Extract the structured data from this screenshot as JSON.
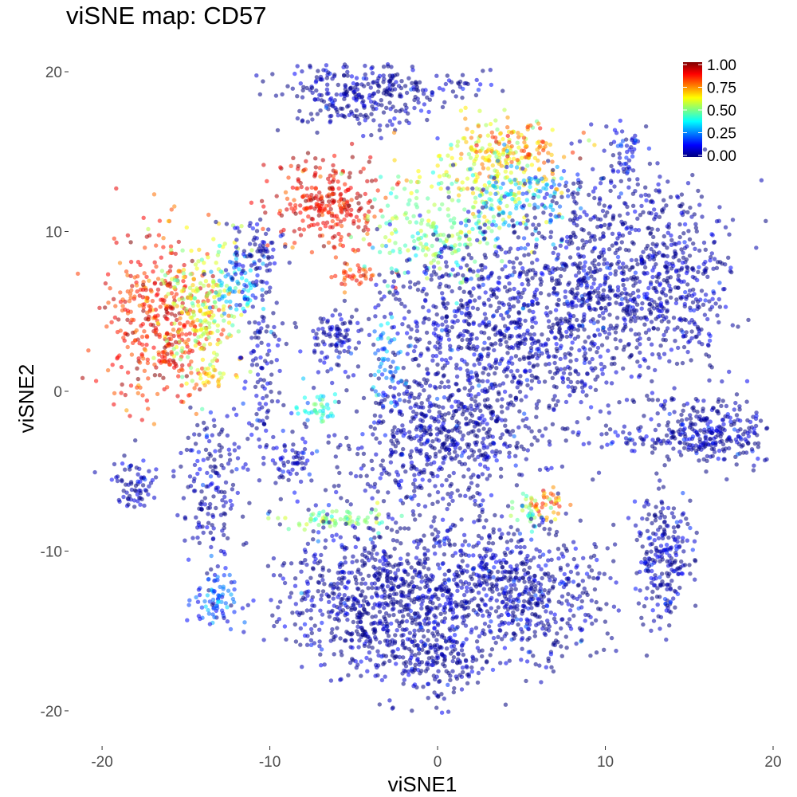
{
  "chart_data": {
    "type": "scatter",
    "title": "viSNE map: CD57",
    "xlabel": "viSNE1",
    "ylabel": "viSNE2",
    "xlim": [
      -22,
      20
    ],
    "ylim": [
      -22,
      20.5
    ],
    "x_ticks": [
      -20,
      -10,
      0,
      10,
      20
    ],
    "y_ticks": [
      -20,
      -10,
      0,
      10,
      20
    ],
    "grid": false,
    "colormap": "jet",
    "colormap_stops": [
      "#00007F",
      "#0000FF",
      "#007FFF",
      "#00FFFF",
      "#7FFF7F",
      "#FFFF00",
      "#FF7F00",
      "#FF0000",
      "#7F0000"
    ],
    "color_range": [
      0,
      1
    ],
    "legend": {
      "placement": "top-right",
      "ticks": [
        0.0,
        0.25,
        0.5,
        0.75,
        1.0
      ],
      "tick_labels": [
        "0.00",
        "0.25",
        "0.50",
        "0.75",
        "1.00"
      ]
    },
    "point_alpha": 0.55,
    "clusters": [
      {
        "cx": -4.5,
        "cy": 18.7,
        "sx": 2.6,
        "sy": 1.1,
        "value": 0.02,
        "n": 320
      },
      {
        "cx": 1.5,
        "cy": 19.2,
        "sx": 1.0,
        "sy": 0.2,
        "value": 0.05,
        "n": 15
      },
      {
        "cx": -6.5,
        "cy": 11.7,
        "sx": 1.6,
        "sy": 1.3,
        "value": 0.88,
        "n": 260
      },
      {
        "cx": -5.0,
        "cy": 7.5,
        "sx": 0.8,
        "sy": 0.6,
        "value": 0.82,
        "n": 40
      },
      {
        "cx": -16.5,
        "cy": 4.2,
        "sx": 1.7,
        "sy": 2.6,
        "value": 0.86,
        "n": 400
      },
      {
        "cx": -14.0,
        "cy": 5.2,
        "sx": 1.2,
        "sy": 2.2,
        "value": 0.58,
        "n": 200
      },
      {
        "cx": -12.0,
        "cy": 6.5,
        "sx": 0.8,
        "sy": 1.4,
        "value": 0.3,
        "n": 70
      },
      {
        "cx": -10.8,
        "cy": 8.5,
        "sx": 0.9,
        "sy": 1.2,
        "value": 0.04,
        "n": 80
      },
      {
        "cx": 3.5,
        "cy": 14.0,
        "sx": 2.0,
        "sy": 1.5,
        "value": 0.62,
        "n": 230
      },
      {
        "cx": 0.0,
        "cy": 10.0,
        "sx": 2.2,
        "sy": 1.6,
        "value": 0.5,
        "n": 200
      },
      {
        "cx": 5.5,
        "cy": 15.5,
        "sx": 1.4,
        "sy": 0.6,
        "value": 0.78,
        "n": 60
      },
      {
        "cx": 5.0,
        "cy": 12.0,
        "sx": 1.5,
        "sy": 1.3,
        "value": 0.3,
        "n": 110
      },
      {
        "cx": 10.5,
        "cy": 7.0,
        "sx": 3.0,
        "sy": 3.8,
        "value": 0.02,
        "n": 900
      },
      {
        "cx": 3.0,
        "cy": 4.0,
        "sx": 3.2,
        "sy": 3.0,
        "value": 0.03,
        "n": 800
      },
      {
        "cx": 15.0,
        "cy": 6.5,
        "sx": 1.2,
        "sy": 2.5,
        "value": 0.04,
        "n": 150
      },
      {
        "cx": 11.0,
        "cy": 15.0,
        "sx": 0.6,
        "sy": 0.8,
        "value": 0.1,
        "n": 40
      },
      {
        "cx": 0.0,
        "cy": -3.0,
        "sx": 3.2,
        "sy": 2.2,
        "value": 0.02,
        "n": 600
      },
      {
        "cx": -6.0,
        "cy": 3.5,
        "sx": 0.9,
        "sy": 1.0,
        "value": 0.05,
        "n": 90
      },
      {
        "cx": -3.0,
        "cy": 2.0,
        "sx": 0.6,
        "sy": 1.5,
        "value": 0.25,
        "n": 50
      },
      {
        "cx": -7.0,
        "cy": -1.0,
        "sx": 0.6,
        "sy": 0.5,
        "value": 0.38,
        "n": 40
      },
      {
        "cx": -10.5,
        "cy": 2.0,
        "sx": 0.6,
        "sy": 3.5,
        "value": 0.04,
        "n": 110
      },
      {
        "cx": -13.5,
        "cy": 0.8,
        "sx": 0.5,
        "sy": 0.5,
        "value": 0.65,
        "n": 25
      },
      {
        "cx": -13.5,
        "cy": -6.0,
        "sx": 1.0,
        "sy": 2.2,
        "value": 0.04,
        "n": 160
      },
      {
        "cx": -18.0,
        "cy": -5.8,
        "sx": 0.7,
        "sy": 0.8,
        "value": 0.05,
        "n": 70
      },
      {
        "cx": -8.7,
        "cy": -4.5,
        "sx": 0.8,
        "sy": 0.8,
        "value": 0.06,
        "n": 55
      },
      {
        "cx": -6.0,
        "cy": -8.0,
        "sx": 1.7,
        "sy": 0.3,
        "value": 0.5,
        "n": 70
      },
      {
        "cx": -13.2,
        "cy": -13.0,
        "sx": 0.7,
        "sy": 0.9,
        "value": 0.18,
        "n": 80
      },
      {
        "cx": 6.5,
        "cy": -7.0,
        "sx": 0.6,
        "sy": 0.5,
        "value": 0.78,
        "n": 35
      },
      {
        "cx": 5.5,
        "cy": -7.5,
        "sx": 0.7,
        "sy": 0.5,
        "value": 0.45,
        "n": 30
      },
      {
        "cx": -3.0,
        "cy": -13.0,
        "sx": 3.0,
        "sy": 2.5,
        "value": 0.02,
        "n": 850
      },
      {
        "cx": 4.5,
        "cy": -12.5,
        "sx": 3.0,
        "sy": 2.2,
        "value": 0.03,
        "n": 650
      },
      {
        "cx": 0.0,
        "cy": -17.0,
        "sx": 1.5,
        "sy": 1.2,
        "value": 0.02,
        "n": 140
      },
      {
        "cx": 16.5,
        "cy": -2.5,
        "sx": 1.8,
        "sy": 1.0,
        "value": 0.03,
        "n": 260
      },
      {
        "cx": 12.5,
        "cy": -3.0,
        "sx": 2.0,
        "sy": 0.4,
        "value": 0.05,
        "n": 60
      },
      {
        "cx": 13.5,
        "cy": -10.5,
        "sx": 0.9,
        "sy": 2.0,
        "value": 0.03,
        "n": 230
      }
    ]
  }
}
